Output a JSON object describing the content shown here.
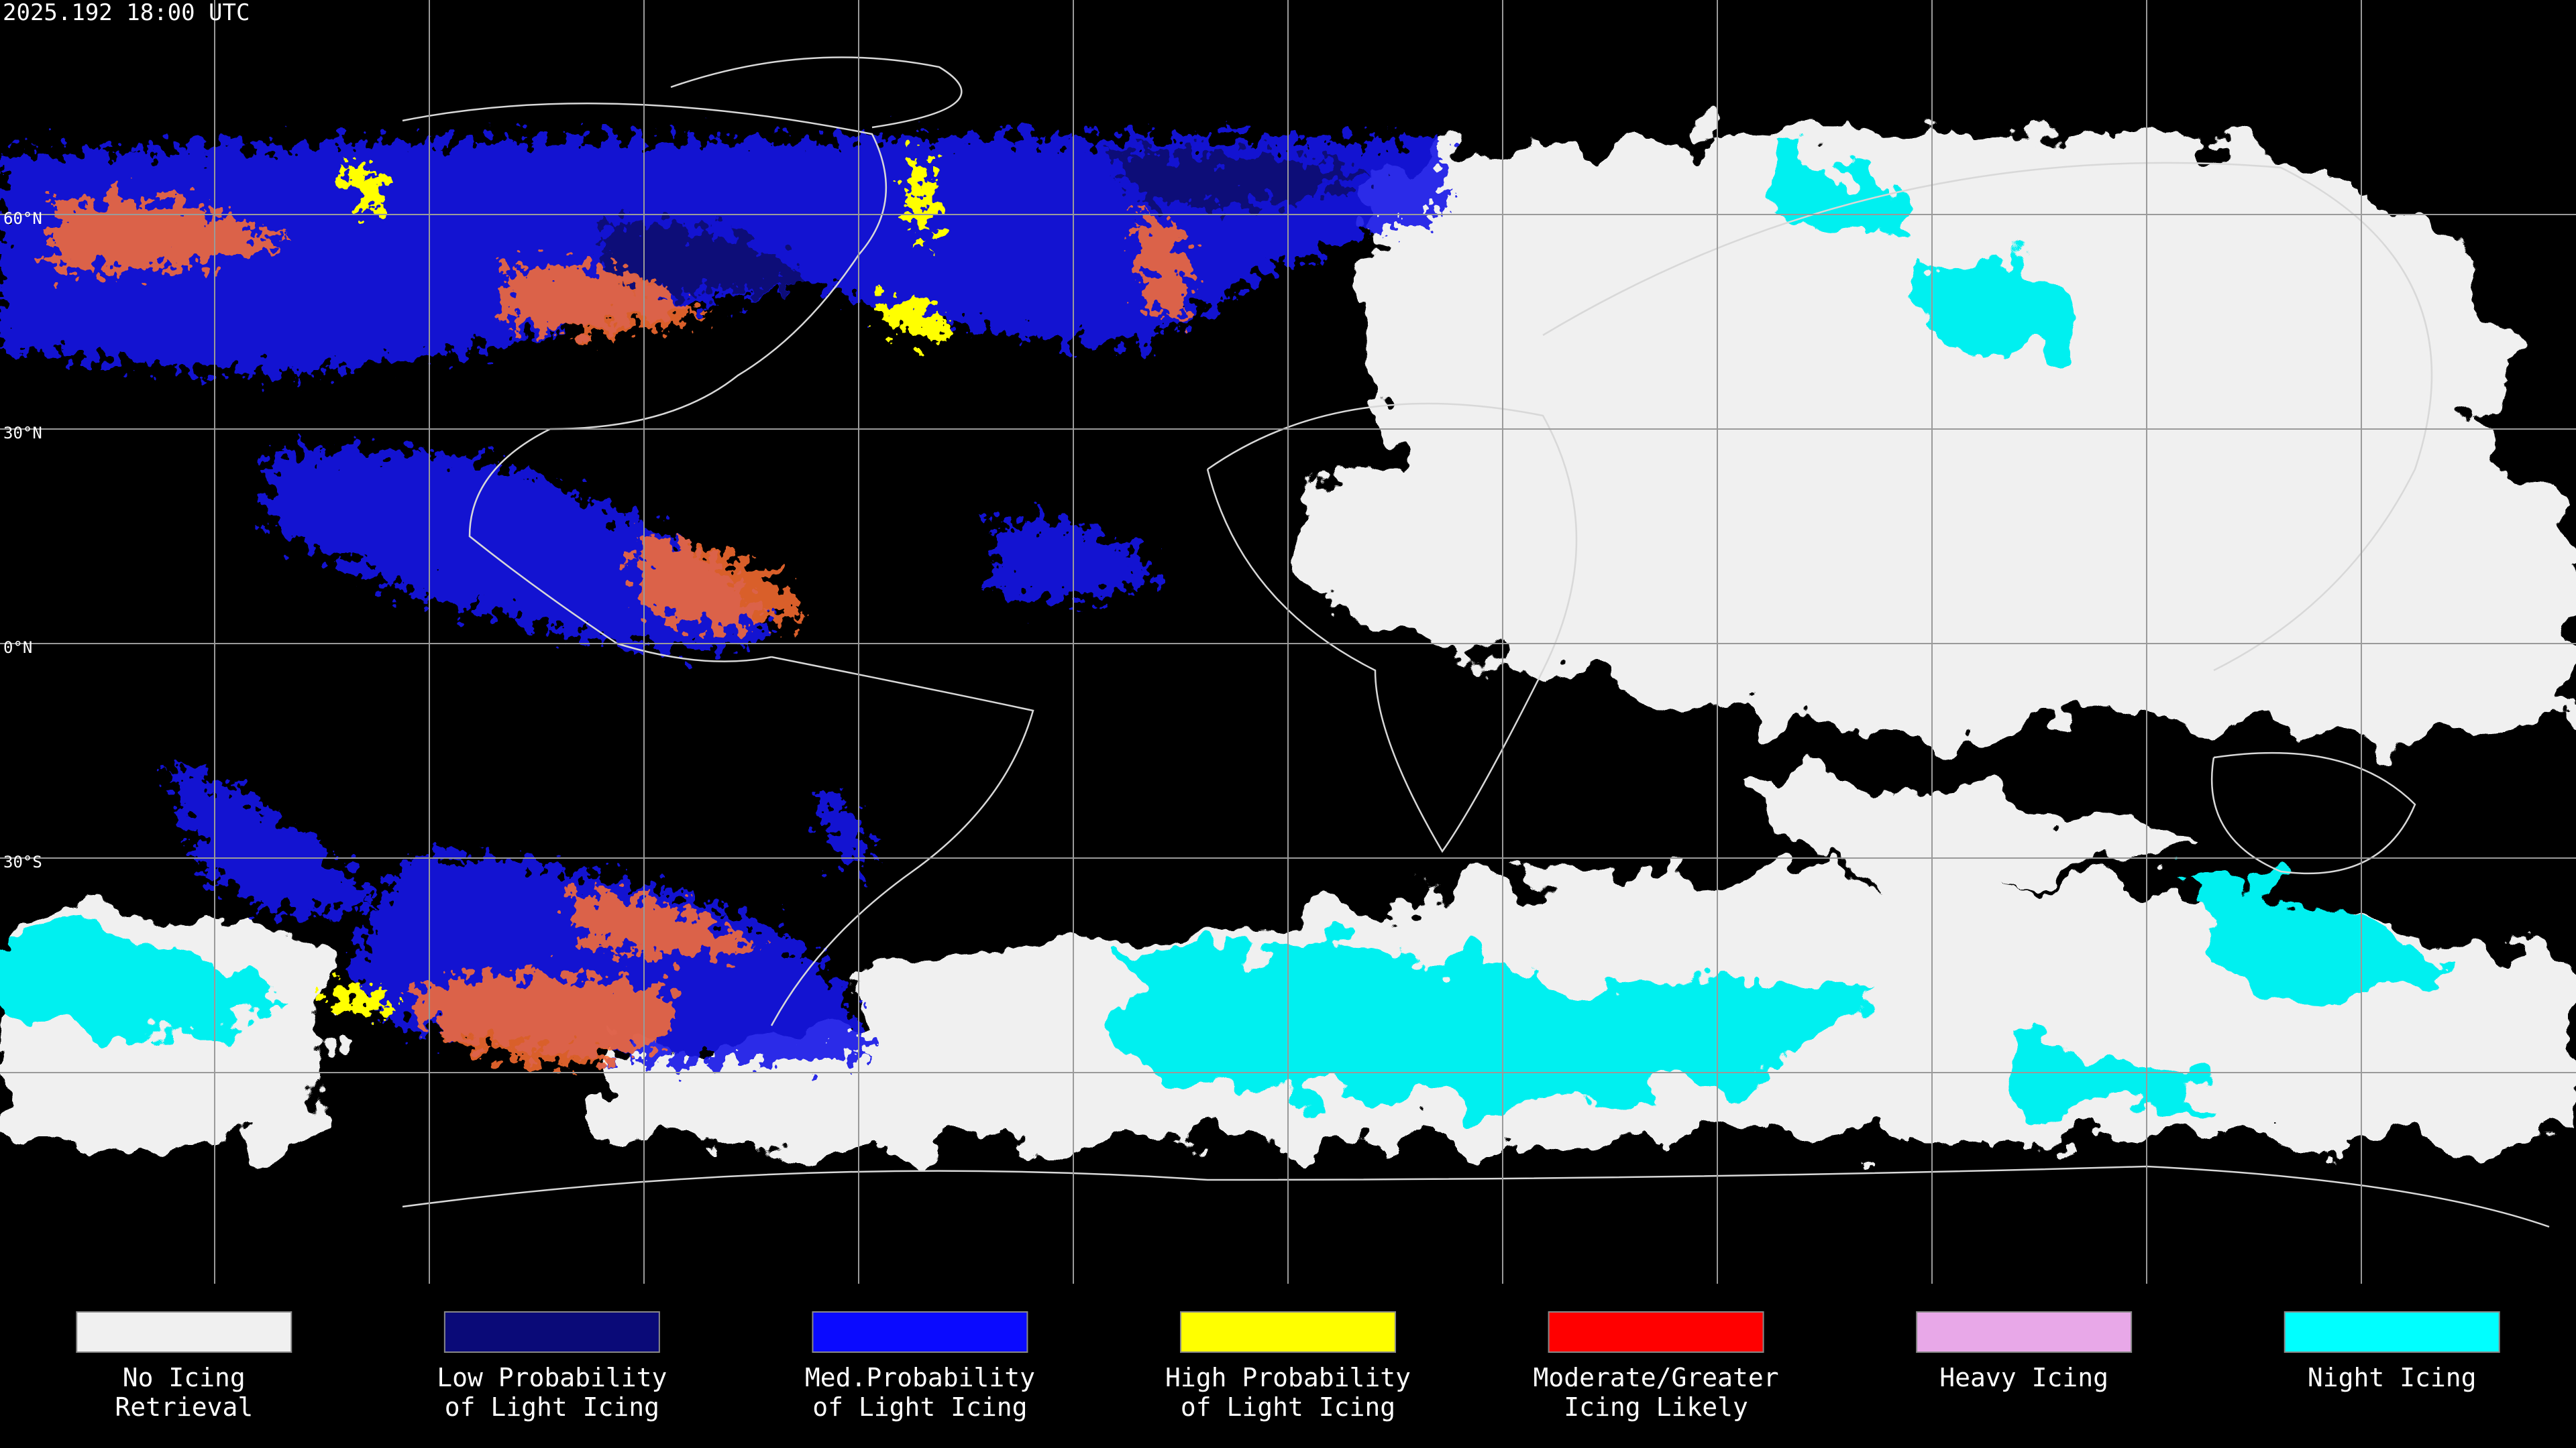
{
  "header": {
    "timestamp": "2025.192 18:00 UTC"
  },
  "map": {
    "latitude_labels": [
      "60°N",
      "30°N",
      "0°N",
      "30°S"
    ]
  },
  "legend": {
    "items": [
      {
        "lines": [
          "No Icing",
          "Retrieval"
        ],
        "color": "#f0f0f0"
      },
      {
        "lines": [
          "Low Probability",
          "of Light Icing"
        ],
        "color": "#0a0a78"
      },
      {
        "lines": [
          "Med.Probability",
          "of Light Icing"
        ],
        "color": "#0a0aff"
      },
      {
        "lines": [
          "High Probability",
          "of Light Icing"
        ],
        "color": "#ffff00"
      },
      {
        "lines": [
          "Moderate/Greater",
          "Icing Likely"
        ],
        "color": "#ff0000"
      },
      {
        "lines": [
          "Heavy Icing"
        ],
        "color": "#e8a8e8"
      },
      {
        "lines": [
          "Night Icing"
        ],
        "color": "#00ffff"
      }
    ]
  }
}
